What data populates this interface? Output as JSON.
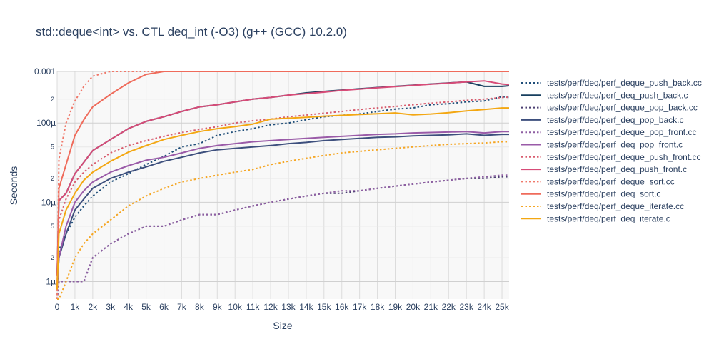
{
  "chart_data": {
    "type": "line",
    "title": "std::deque<int> vs. CTL deq_int (-O3) (g++ (GCC) 10.2.0)",
    "xlabel": "Size",
    "ylabel": "Seconds",
    "xlim": [
      0,
      25400
    ],
    "ylim_log10": [
      -6.22,
      -3.35
    ],
    "x_ticks": [
      {
        "value": 0,
        "label": "0"
      },
      {
        "value": 1000,
        "label": "1k"
      },
      {
        "value": 2000,
        "label": "2k"
      },
      {
        "value": 3000,
        "label": "3k"
      },
      {
        "value": 4000,
        "label": "4k"
      },
      {
        "value": 5000,
        "label": "5k"
      },
      {
        "value": 6000,
        "label": "6k"
      },
      {
        "value": 7000,
        "label": "7k"
      },
      {
        "value": 8000,
        "label": "8k"
      },
      {
        "value": 9000,
        "label": "9k"
      },
      {
        "value": 10000,
        "label": "10k"
      },
      {
        "value": 11000,
        "label": "11k"
      },
      {
        "value": 12000,
        "label": "12k"
      },
      {
        "value": 13000,
        "label": "13k"
      },
      {
        "value": 14000,
        "label": "14k"
      },
      {
        "value": 15000,
        "label": "15k"
      },
      {
        "value": 16000,
        "label": "16k"
      },
      {
        "value": 17000,
        "label": "17k"
      },
      {
        "value": 18000,
        "label": "18k"
      },
      {
        "value": 19000,
        "label": "19k"
      },
      {
        "value": 20000,
        "label": "20k"
      },
      {
        "value": 21000,
        "label": "21k"
      },
      {
        "value": 22000,
        "label": "22k"
      },
      {
        "value": 23000,
        "label": "23k"
      },
      {
        "value": 24000,
        "label": "24k"
      },
      {
        "value": 25000,
        "label": "25k"
      }
    ],
    "y_major_ticks": [
      {
        "value": 1e-06,
        "label": "1µ"
      },
      {
        "value": 1e-05,
        "label": "10µ"
      },
      {
        "value": 0.0001,
        "label": "100µ"
      },
      {
        "value": 0.001,
        "label": "0.001"
      }
    ],
    "y_minor_ticks": [
      {
        "value": 5e-07,
        "label": "5"
      },
      {
        "value": 2e-06,
        "label": "2"
      },
      {
        "value": 5e-06,
        "label": "5"
      },
      {
        "value": 2e-05,
        "label": "2"
      },
      {
        "value": 5e-05,
        "label": "5"
      },
      {
        "value": 0.0002,
        "label": "2"
      },
      {
        "value": 0.0005,
        "label": "5"
      },
      {
        "value": 0.002,
        "label": "2"
      }
    ],
    "x": [
      0,
      100,
      500,
      1000,
      1500,
      2000,
      3000,
      4000,
      5000,
      6000,
      7000,
      8000,
      9000,
      10000,
      11000,
      12000,
      13000,
      14000,
      15000,
      16000,
      17000,
      18000,
      19000,
      20000,
      21000,
      22000,
      23000,
      24000,
      25000,
      25400
    ],
    "series": [
      {
        "name": "tests/perf/deq/perf_deque_push_back.cc",
        "color": "#1f4e79",
        "dash": "dot",
        "values": [
          6e-07,
          2.5e-06,
          4e-06,
          6.5e-06,
          9e-06,
          1.2e-05,
          1.8e-05,
          2.3e-05,
          3e-05,
          3.8e-05,
          5e-05,
          5.5e-05,
          7e-05,
          7.8e-05,
          8.5e-05,
          9.5e-05,
          0.0001,
          0.00011,
          0.00012,
          0.000125,
          0.00013,
          0.00014,
          0.00015,
          0.000155,
          0.00017,
          0.000175,
          0.000185,
          0.00019,
          0.000215,
          0.00021
        ]
      },
      {
        "name": "tests/perf/deq/perf_deq_push_back.c",
        "color": "#173f5f",
        "dash": "solid",
        "values": [
          1.2e-06,
          1.05e-05,
          1.3e-05,
          2.3e-05,
          3.2e-05,
          4.5e-05,
          6.2e-05,
          8.5e-05,
          0.000105,
          0.00012,
          0.00014,
          0.00016,
          0.00017,
          0.000185,
          0.0002,
          0.00021,
          0.000225,
          0.00024,
          0.00025,
          0.00026,
          0.00027,
          0.00028,
          0.00029,
          0.0003,
          0.00031,
          0.00032,
          0.00033,
          0.00029,
          0.00029,
          0.000295
        ]
      },
      {
        "name": "tests/perf/deq/perf_deque_pop_back.cc",
        "color": "#4b3f72",
        "dash": "dot",
        "values": [
          5e-07,
          1e-06,
          1e-06,
          1e-06,
          1e-06,
          2e-06,
          3e-06,
          4e-06,
          5e-06,
          5e-06,
          6e-06,
          7e-06,
          7e-06,
          8e-06,
          9e-06,
          1e-05,
          1.1e-05,
          1.2e-05,
          1.3e-05,
          1.3e-05,
          1.4e-05,
          1.5e-05,
          1.6e-05,
          1.7e-05,
          1.8e-05,
          1.9e-05,
          2e-05,
          2e-05,
          2.1e-05,
          2.1e-05
        ]
      },
      {
        "name": "tests/perf/deq/perf_deq_pop_back.c",
        "color": "#3d4f7d",
        "dash": "solid",
        "values": [
          8e-07,
          2e-06,
          4e-06,
          8e-06,
          1.1e-05,
          1.5e-05,
          2e-05,
          2.4e-05,
          2.8e-05,
          3.3e-05,
          3.7e-05,
          4.2e-05,
          4.6e-05,
          4.8e-05,
          5e-05,
          5.2e-05,
          5.5e-05,
          5.7e-05,
          6e-05,
          6.2e-05,
          6.4e-05,
          6.6e-05,
          6.7e-05,
          6.9e-05,
          7e-05,
          7.1e-05,
          7.3e-05,
          7e-05,
          7.2e-05,
          7.2e-05
        ]
      },
      {
        "name": "tests/perf/deq/perf_deque_pop_front.cc",
        "color": "#8e5ea2",
        "dash": "dot",
        "values": [
          5e-07,
          1e-06,
          1e-06,
          1e-06,
          1e-06,
          2e-06,
          3e-06,
          4e-06,
          5e-06,
          5e-06,
          6e-06,
          7e-06,
          7e-06,
          8e-06,
          9e-06,
          1e-05,
          1.1e-05,
          1.2e-05,
          1.3e-05,
          1.4e-05,
          1.4e-05,
          1.5e-05,
          1.6e-05,
          1.7e-05,
          1.8e-05,
          1.9e-05,
          2e-05,
          2.1e-05,
          2.2e-05,
          2.2e-05
        ]
      },
      {
        "name": "tests/perf/deq/perf_deq_pop_front.c",
        "color": "#9a5ba8",
        "dash": "solid",
        "values": [
          8e-07,
          2e-06,
          5e-06,
          1e-05,
          1.4e-05,
          1.8e-05,
          2.4e-05,
          2.9e-05,
          3.4e-05,
          3.7e-05,
          4.2e-05,
          4.8e-05,
          5.2e-05,
          5.5e-05,
          5.8e-05,
          6e-05,
          6.2e-05,
          6.4e-05,
          6.6e-05,
          6.8e-05,
          7e-05,
          7.2e-05,
          7.3e-05,
          7.5e-05,
          7.6e-05,
          7.7e-05,
          7.8e-05,
          7.5e-05,
          7.8e-05,
          7.8e-05
        ]
      },
      {
        "name": "tests/perf/deq/perf_deque_push_front.cc",
        "color": "#d85c6e",
        "dash": "dot",
        "values": [
          8e-07,
          6e-06,
          1.1e-05,
          1.8e-05,
          2.4e-05,
          3e-05,
          4.2e-05,
          5.2e-05,
          6e-05,
          6.8e-05,
          7.6e-05,
          8.3e-05,
          9e-05,
          0.0001,
          0.000107,
          0.000112,
          0.00012,
          0.000126,
          0.000133,
          0.00014,
          0.000148,
          0.000155,
          0.000162,
          0.00017,
          0.000178,
          0.000185,
          0.000193,
          0.0002,
          0.00021,
          0.000212
        ]
      },
      {
        "name": "tests/perf/deq/perf_deq_push_front.c",
        "color": "#d74c78",
        "dash": "solid",
        "values": [
          1.2e-06,
          1.05e-05,
          1.3e-05,
          2.3e-05,
          3.2e-05,
          4.5e-05,
          6.2e-05,
          8.5e-05,
          0.000105,
          0.00012,
          0.00014,
          0.00016,
          0.00017,
          0.000185,
          0.0002,
          0.00021,
          0.000225,
          0.000235,
          0.000245,
          0.000258,
          0.000268,
          0.000278,
          0.000288,
          0.000298,
          0.000308,
          0.000318,
          0.00033,
          0.00034,
          0.00031,
          0.000305
        ]
      },
      {
        "name": "tests/perf/deq/perf_deque_sort.cc",
        "color": "#f0786a",
        "dash": "dot",
        "values": [
          5e-07,
          3.5e-05,
          0.0001,
          0.00019,
          0.00029,
          0.00039,
          0.00058,
          0.0006,
          0.00075,
          0.00088,
          0.00094,
          0.00113,
          0.0012,
          0.00102,
          0.0011,
          0.00112,
          0.00118,
          0.00125,
          0.00132,
          0.0014,
          0.00148,
          0.00155,
          0.00162,
          0.00168,
          0.00175,
          0.00182,
          0.00188,
          0.00195,
          0.00205,
          0.00208
        ]
      },
      {
        "name": "tests/perf/deq/perf_deq_sort.c",
        "color": "#ef6b5b",
        "dash": "solid",
        "values": [
          8e-07,
          1.5e-05,
          3e-05,
          7e-05,
          0.00011,
          0.00016,
          0.00023,
          0.00032,
          0.00041,
          0.00046,
          0.00055,
          0.00063,
          0.00073,
          0.00085,
          0.00094,
          0.00105,
          0.00113,
          0.00124,
          0.00133,
          0.00142,
          0.00153,
          0.00165,
          0.00175,
          0.00185,
          0.00195,
          0.00205,
          0.00212,
          0.00218,
          0.00224,
          0.00226
        ]
      },
      {
        "name": "tests/perf/deq/perf_deque_iterate.cc",
        "color": "#f5a623",
        "dash": "dot",
        "values": [
          5e-07,
          5e-07,
          1e-06,
          2e-06,
          3e-06,
          4e-06,
          6e-06,
          9e-06,
          1.2e-05,
          1.5e-05,
          1.8e-05,
          2e-05,
          2.2e-05,
          2.4e-05,
          2.6e-05,
          3e-05,
          3.3e-05,
          3.6e-05,
          3.9e-05,
          4.2e-05,
          4.4e-05,
          4.6e-05,
          4.8e-05,
          5e-05,
          5.2e-05,
          5.4e-05,
          5.5e-05,
          5.6e-05,
          5.8e-05,
          5.8e-05
        ]
      },
      {
        "name": "tests/perf/deq/perf_deq_iterate.c",
        "color": "#f3a712",
        "dash": "solid",
        "values": [
          8e-07,
          4e-06,
          8e-06,
          1.3e-05,
          1.9e-05,
          2.4e-05,
          3.3e-05,
          4.3e-05,
          5.2e-05,
          6.2e-05,
          7e-05,
          7.8e-05,
          8.5e-05,
          9e-05,
          9.7e-05,
          0.000112,
          0.000115,
          0.000118,
          0.000122,
          0.000125,
          0.000128,
          0.000131,
          0.000134,
          0.000127,
          0.00013,
          0.000135,
          0.000142,
          0.000148,
          0.000155,
          0.000155
        ]
      }
    ]
  }
}
